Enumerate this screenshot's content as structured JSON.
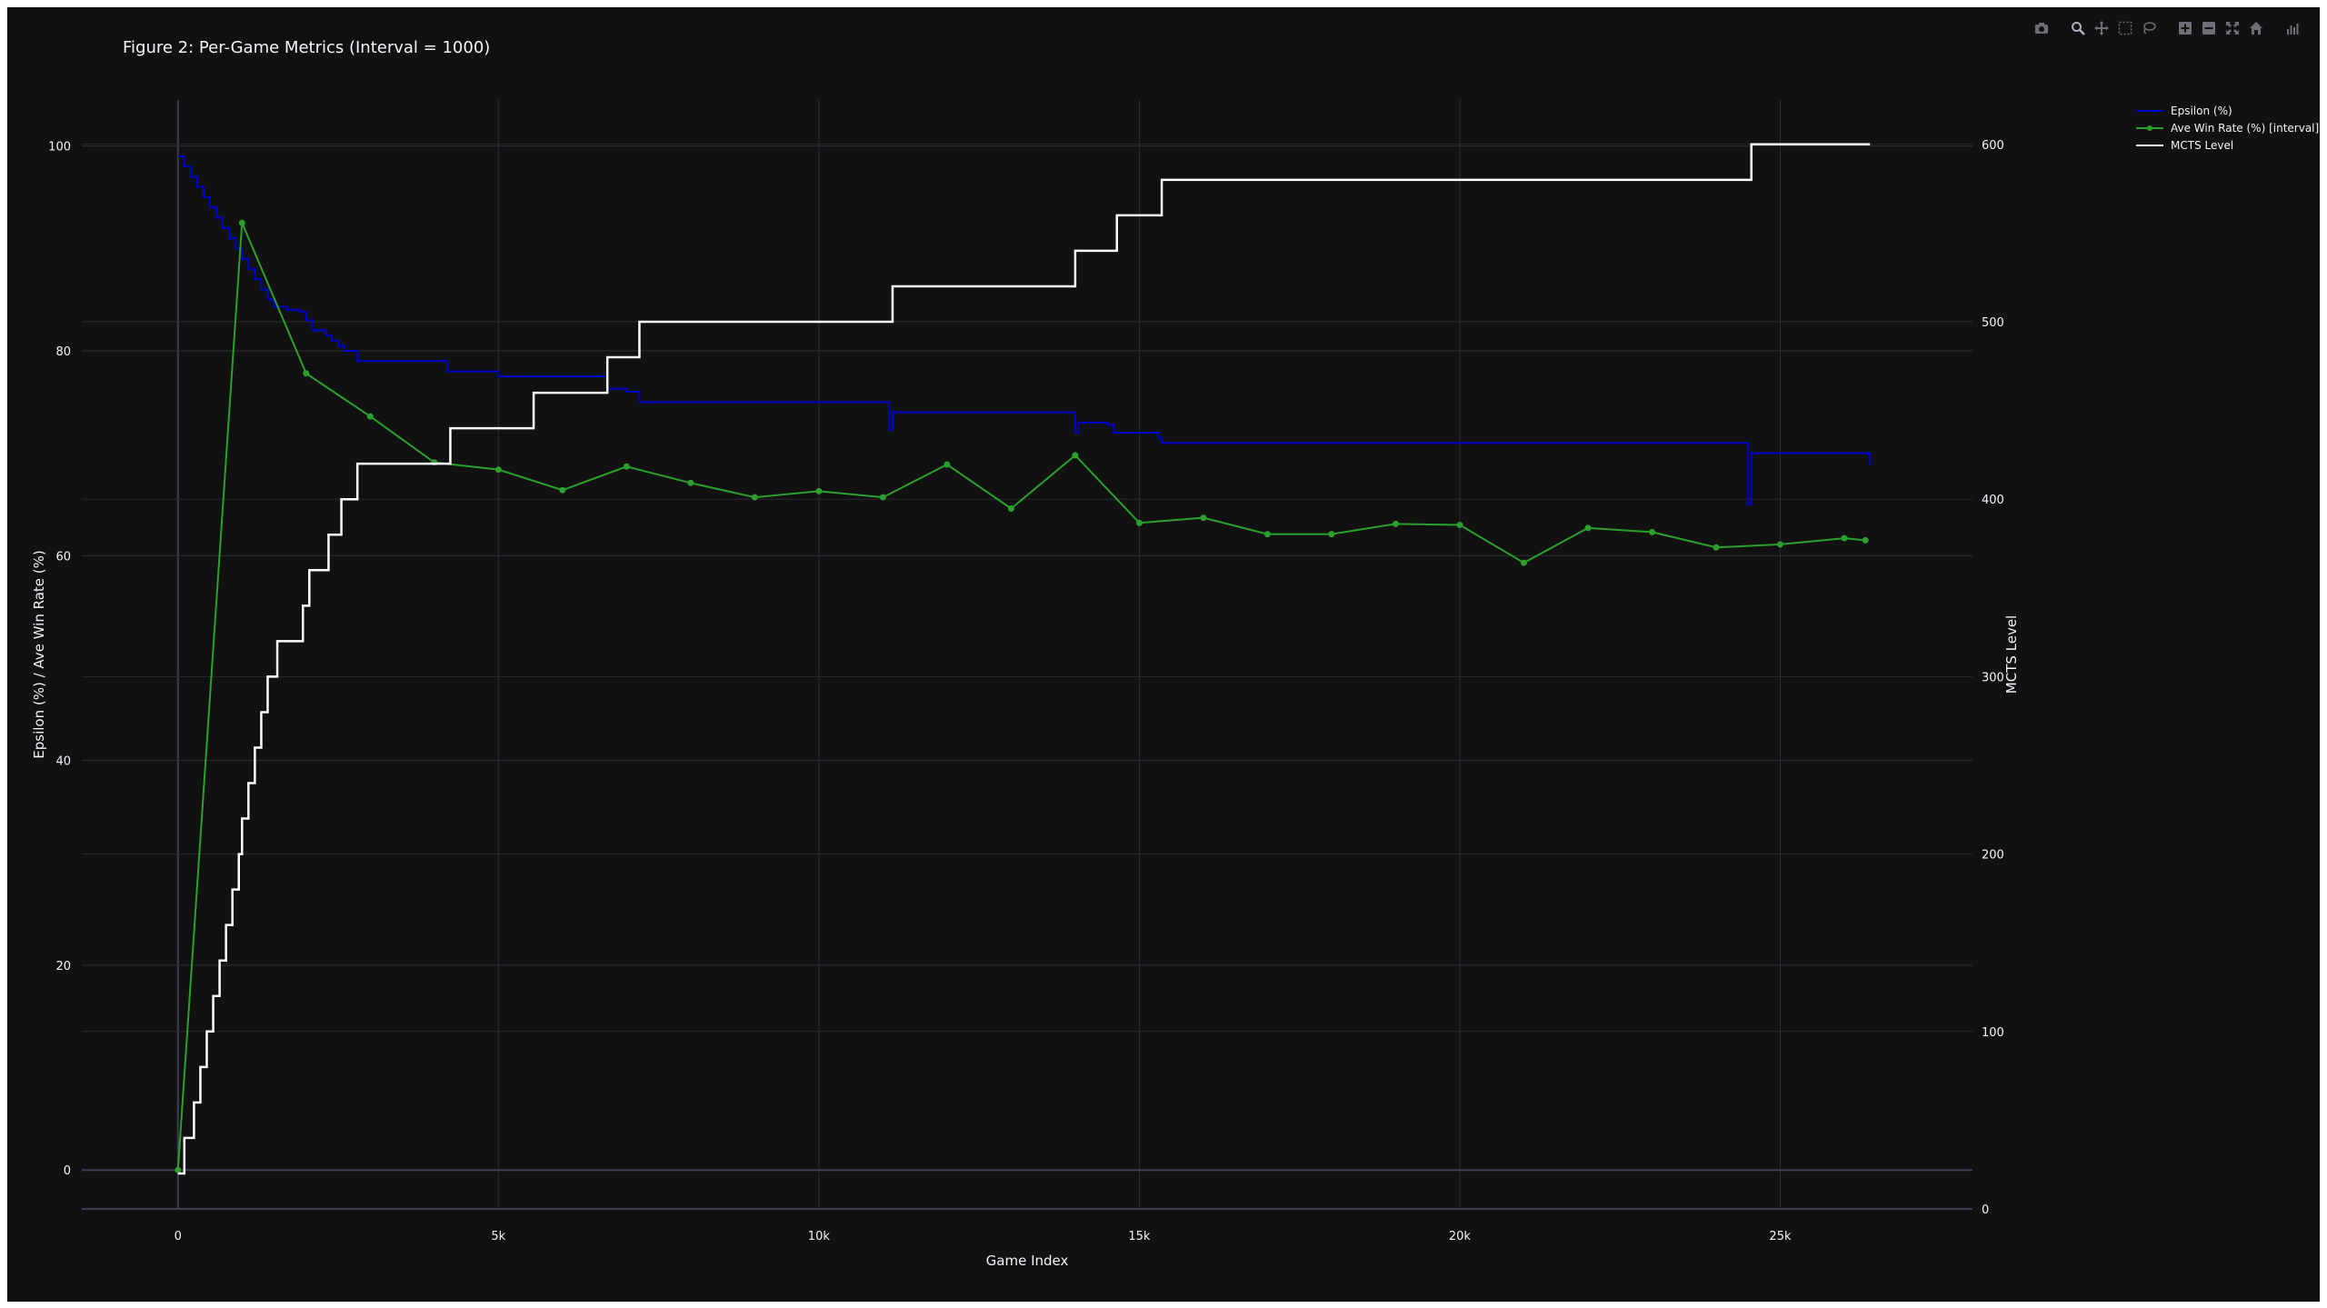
{
  "toolbar": {
    "buttons": [
      {
        "name": "download-plot-button",
        "icon": "camera-icon"
      },
      {
        "name": "zoom-button",
        "icon": "zoom-icon"
      },
      {
        "name": "pan-button",
        "icon": "pan-icon"
      },
      {
        "name": "box-select-button",
        "icon": "box-select-icon"
      },
      {
        "name": "lasso-select-button",
        "icon": "lasso-icon"
      },
      {
        "name": "zoom-in-button",
        "icon": "zoom-in-icon"
      },
      {
        "name": "zoom-out-button",
        "icon": "zoom-out-icon"
      },
      {
        "name": "autoscale-button",
        "icon": "autoscale-icon"
      },
      {
        "name": "reset-axes-button",
        "icon": "home-icon"
      },
      {
        "name": "plotly-logo-button",
        "icon": "plotly-logo-icon"
      }
    ]
  },
  "chart_data": {
    "type": "line",
    "title": "Figure 2: Per-Game Metrics (Interval = 1000)",
    "xlabel": "Game Index",
    "ylabel": "Epsilon (%) / Ave Win Rate (%)",
    "y2label": "MCTS Level",
    "xlim": [
      -1500,
      28000
    ],
    "ylim": [
      -3.8,
      104.5
    ],
    "y2lim": [
      0,
      625
    ],
    "x_ticks": [
      0,
      5000,
      10000,
      15000,
      20000,
      25000
    ],
    "x_tick_labels": [
      "0",
      "5k",
      "10k",
      "15k",
      "20k",
      "25k"
    ],
    "y_ticks": [
      0,
      20,
      40,
      60,
      80,
      100
    ],
    "y_tick_labels": [
      "0",
      "20",
      "40",
      "60",
      "80",
      "100"
    ],
    "y2_ticks": [
      0,
      100,
      200,
      300,
      400,
      500,
      600
    ],
    "y2_tick_labels": [
      "0",
      "100",
      "200",
      "300",
      "400",
      "500",
      "600"
    ],
    "grid": true,
    "legend_position": "top-right",
    "series": [
      {
        "name": "Epsilon (%)",
        "color": "#0000cc",
        "axis": "y",
        "mode": "lines",
        "line_shape": "hv",
        "points": [
          [
            0,
            99
          ],
          [
            100,
            98
          ],
          [
            200,
            97
          ],
          [
            300,
            96
          ],
          [
            400,
            95
          ],
          [
            500,
            94
          ],
          [
            600,
            93
          ],
          [
            700,
            92
          ],
          [
            800,
            91
          ],
          [
            900,
            90
          ],
          [
            1000,
            89
          ],
          [
            1100,
            88
          ],
          [
            1200,
            87
          ],
          [
            1300,
            86
          ],
          [
            1400,
            85
          ],
          [
            1500,
            84.3
          ],
          [
            1700,
            84
          ],
          [
            1900,
            83.8
          ],
          [
            2000,
            83
          ],
          [
            2100,
            82
          ],
          [
            2300,
            81.5
          ],
          [
            2400,
            81
          ],
          [
            2500,
            80.5
          ],
          [
            2600,
            80
          ],
          [
            2800,
            79
          ],
          [
            4200,
            78
          ],
          [
            5000,
            77.5
          ],
          [
            6700,
            76.3
          ],
          [
            7000,
            76
          ],
          [
            7200,
            75
          ],
          [
            11100,
            72.3
          ],
          [
            11150,
            74
          ],
          [
            14000,
            72
          ],
          [
            14050,
            73
          ],
          [
            14500,
            72.8
          ],
          [
            14600,
            72
          ],
          [
            15300,
            71.5
          ],
          [
            15350,
            71
          ],
          [
            24500,
            65
          ],
          [
            24550,
            70
          ],
          [
            26400,
            68.8
          ]
        ]
      },
      {
        "name": "Ave Win Rate (%) [interval]",
        "color": "#2ca02c",
        "axis": "y",
        "mode": "lines+markers",
        "line_shape": "linear",
        "points": [
          [
            0,
            0
          ],
          [
            1000,
            92.5
          ],
          [
            2000,
            77.8
          ],
          [
            3000,
            73.6
          ],
          [
            4000,
            69.1
          ],
          [
            5000,
            68.4
          ],
          [
            6000,
            66.4
          ],
          [
            7000,
            68.7
          ],
          [
            8000,
            67.1
          ],
          [
            9000,
            65.7
          ],
          [
            10000,
            66.3
          ],
          [
            11000,
            65.7
          ],
          [
            12000,
            68.9
          ],
          [
            13000,
            64.6
          ],
          [
            14000,
            69.8
          ],
          [
            15000,
            63.2
          ],
          [
            16000,
            63.7
          ],
          [
            17000,
            62.1
          ],
          [
            18000,
            62.1
          ],
          [
            19000,
            63.1
          ],
          [
            20000,
            63
          ],
          [
            21000,
            59.3
          ],
          [
            22000,
            62.7
          ],
          [
            23000,
            62.3
          ],
          [
            24000,
            60.8
          ],
          [
            25000,
            61.1
          ],
          [
            26000,
            61.7
          ],
          [
            26330,
            61.5
          ]
        ]
      },
      {
        "name": "MCTS Level",
        "color": "#ffffff",
        "axis": "y2",
        "mode": "lines",
        "line_shape": "hv",
        "points": [
          [
            0,
            20
          ],
          [
            100,
            40
          ],
          [
            250,
            60
          ],
          [
            350,
            80
          ],
          [
            450,
            100
          ],
          [
            550,
            120
          ],
          [
            650,
            140
          ],
          [
            750,
            160
          ],
          [
            850,
            180
          ],
          [
            950,
            200
          ],
          [
            1000,
            220
          ],
          [
            1100,
            240
          ],
          [
            1200,
            260
          ],
          [
            1300,
            280
          ],
          [
            1400,
            300
          ],
          [
            1550,
            320
          ],
          [
            1950,
            340
          ],
          [
            2050,
            360
          ],
          [
            2350,
            380
          ],
          [
            2550,
            400
          ],
          [
            2800,
            420
          ],
          [
            4250,
            440
          ],
          [
            5550,
            460
          ],
          [
            6700,
            480
          ],
          [
            7200,
            500
          ],
          [
            11150,
            520
          ],
          [
            14000,
            540
          ],
          [
            14650,
            560
          ],
          [
            15350,
            580
          ],
          [
            24550,
            600
          ],
          [
            26400,
            600
          ]
        ]
      }
    ]
  }
}
